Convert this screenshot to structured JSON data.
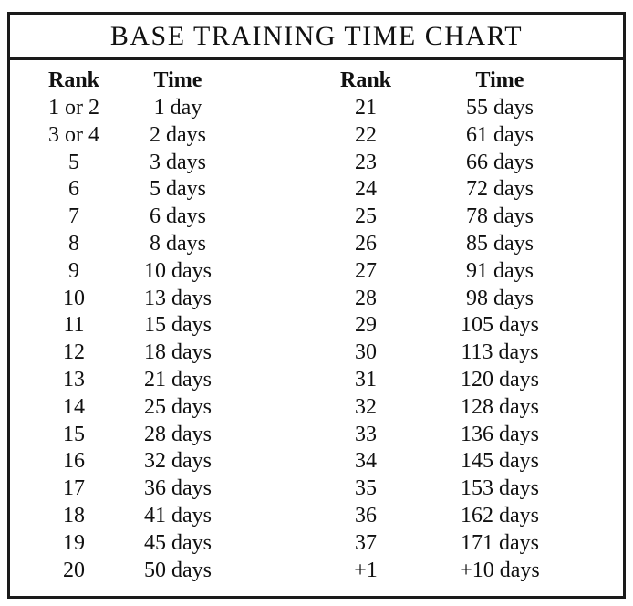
{
  "title": "BASE TRAINING TIME CHART",
  "headers": {
    "rank": "Rank",
    "time": "Time"
  },
  "left": {
    "ranks": [
      "1 or 2",
      "3 or 4",
      "5",
      "6",
      "7",
      "8",
      "9",
      "10",
      "11",
      "12",
      "13",
      "14",
      "15",
      "16",
      "17",
      "18",
      "19",
      "20"
    ],
    "times": [
      "1 day",
      "2 days",
      "3 days",
      "5 days",
      "6 days",
      "8 days",
      "10 days",
      "13 days",
      "15 days",
      "18 days",
      "21 days",
      "25 days",
      "28 days",
      "32 days",
      "36 days",
      "41 days",
      "45 days",
      "50 days"
    ]
  },
  "right": {
    "ranks": [
      "21",
      "22",
      "23",
      "24",
      "25",
      "26",
      "27",
      "28",
      "29",
      "30",
      "31",
      "32",
      "33",
      "34",
      "35",
      "36",
      "37",
      "+1"
    ],
    "times": [
      "55 days",
      "61 days",
      "66 days",
      "72 days",
      "78 days",
      "85 days",
      "91 days",
      "98 days",
      "105 days",
      "113 days",
      "120 days",
      "128 days",
      "136 days",
      "145 days",
      "153 days",
      "162 days",
      "171 days",
      "+10 days"
    ]
  }
}
